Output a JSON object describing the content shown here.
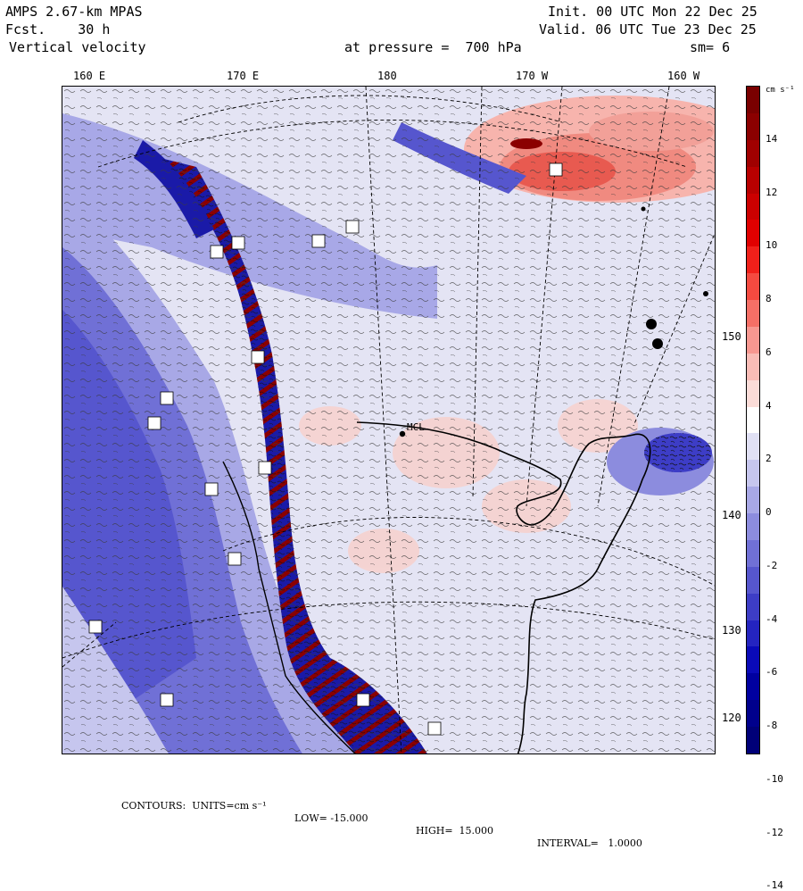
{
  "header": {
    "model": "AMPS 2.67-km MPAS",
    "fcst": "Fcst.    30 h",
    "field": "Vertical velocity",
    "init": "Init. 00 UTC Mon 22 Dec 25",
    "valid": "Valid. 06 UTC Tue 23 Dec 25",
    "pressure": "at pressure =  700 hPa",
    "smoothing": "sm= 6"
  },
  "longitude_labels": [
    "160 E",
    "170 E",
    "180",
    "170 W",
    "160 W"
  ],
  "latitude_labels": [
    "150 W",
    "140 W",
    "130 W",
    "120 W"
  ],
  "station_label": "MCL",
  "colorbar": {
    "units": "cm s⁻¹",
    "tick_labels": [
      "14",
      "12",
      "10",
      "8",
      "6",
      "4",
      "2",
      "0",
      "-2",
      "-4",
      "-6",
      "-8",
      "-10",
      "-12",
      "-14"
    ],
    "colors": [
      "#7a0000",
      "#8b0000",
      "#a00000",
      "#b80000",
      "#cc0000",
      "#e00000",
      "#f0201a",
      "#f44a40",
      "#f56f66",
      "#f79790",
      "#f9bcb6",
      "#fbdcd8",
      "#ffffff",
      "#e0e0f4",
      "#c6c6ee",
      "#a8a8e6",
      "#8c8cde",
      "#7070d6",
      "#5656ce",
      "#3d3dc6",
      "#2424c0",
      "#0a0ab8",
      "#0000a0",
      "#00008c",
      "#000078"
    ]
  },
  "footer": {
    "contours": "CONTOURS:  UNITS=cm s⁻¹",
    "low": "LOW= -15.000",
    "high": "HIGH=  15.000",
    "interval": "INTERVAL=   1.0000"
  }
}
